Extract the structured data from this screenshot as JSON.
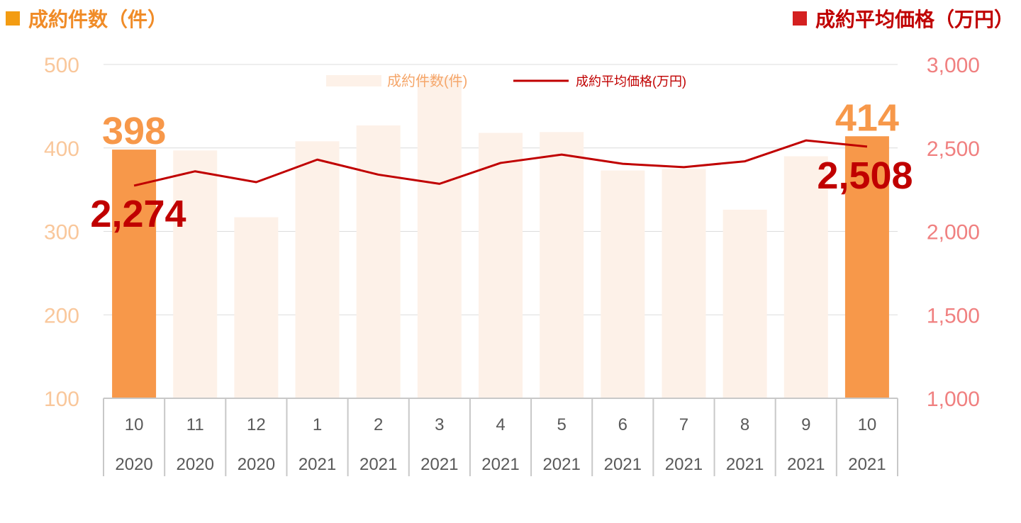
{
  "header": {
    "left_label": "成約件数（件）",
    "right_label": "成約平均価格（万円）",
    "left_color": "#f39c12",
    "right_color": "#d42020"
  },
  "chart_data": {
    "type": "bar",
    "title": "",
    "categories": [
      {
        "month": "10",
        "year": "2020"
      },
      {
        "month": "11",
        "year": "2020"
      },
      {
        "month": "12",
        "year": "2020"
      },
      {
        "month": "1",
        "year": "2021"
      },
      {
        "month": "2",
        "year": "2021"
      },
      {
        "month": "3",
        "year": "2021"
      },
      {
        "month": "4",
        "year": "2021"
      },
      {
        "month": "5",
        "year": "2021"
      },
      {
        "month": "6",
        "year": "2021"
      },
      {
        "month": "7",
        "year": "2021"
      },
      {
        "month": "8",
        "year": "2021"
      },
      {
        "month": "9",
        "year": "2021"
      },
      {
        "month": "10",
        "year": "2021"
      }
    ],
    "series": [
      {
        "name": "成約件数(件)",
        "type": "bar",
        "axis": "left",
        "values": [
          398,
          397,
          317,
          408,
          427,
          485,
          418,
          419,
          373,
          375,
          326,
          390,
          414
        ],
        "color": "#fdf1e8",
        "highlight_color": "#f7984a",
        "highlight_indices": [
          0,
          12
        ]
      },
      {
        "name": "成約平均価格(万円)",
        "type": "line",
        "axis": "right",
        "values": [
          2274,
          2360,
          2295,
          2430,
          2340,
          2285,
          2410,
          2460,
          2405,
          2385,
          2420,
          2545,
          2508
        ],
        "color": "#c00000"
      }
    ],
    "left_axis": {
      "min": 100,
      "max": 500,
      "ticks": [
        "100",
        "200",
        "300",
        "400",
        "500"
      ],
      "color": "#f9c79b"
    },
    "right_axis": {
      "min": 1000,
      "max": 3000,
      "ticks": [
        "1,000",
        "1,500",
        "2,000",
        "2,500",
        "3,000"
      ],
      "color": "#f08080"
    },
    "data_labels": [
      {
        "text": "398",
        "series": 0,
        "index": 0,
        "color": "#f7984a"
      },
      {
        "text": "414",
        "series": 0,
        "index": 12,
        "color": "#f7984a"
      },
      {
        "text": "2,274",
        "series": 1,
        "index": 0,
        "color": "#c00000"
      },
      {
        "text": "2,508",
        "series": 1,
        "index": 12,
        "color": "#c00000"
      }
    ],
    "legend": {
      "position": "top-center"
    },
    "grid": true
  }
}
